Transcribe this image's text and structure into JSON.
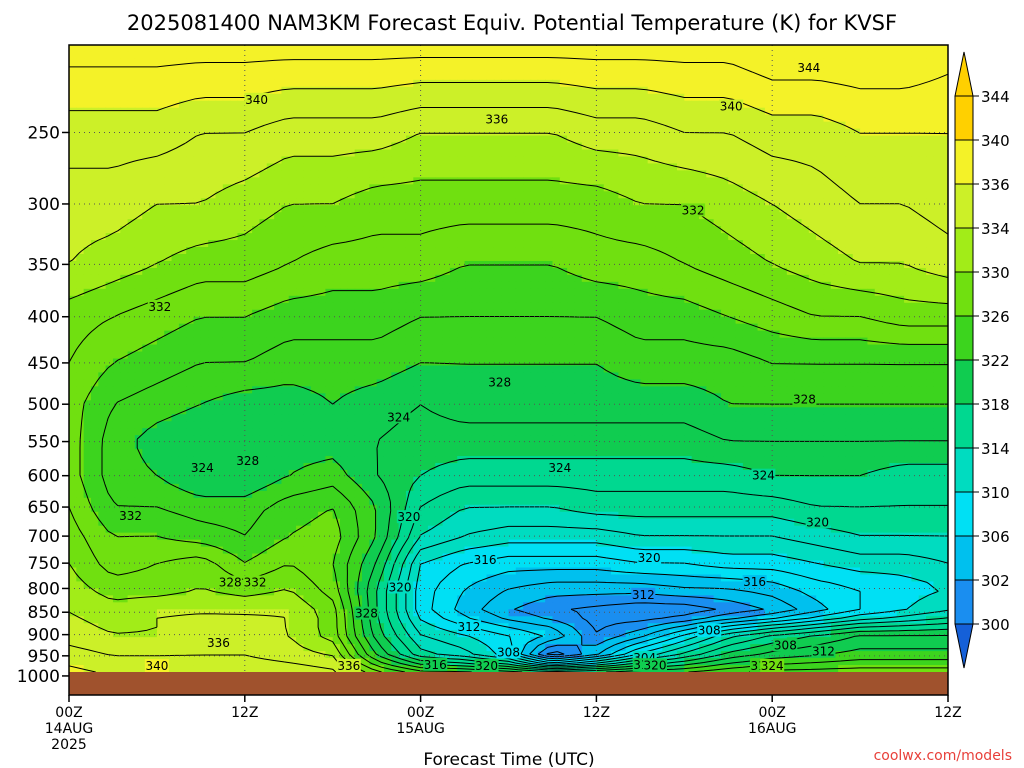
{
  "chart_data": {
    "type": "heatmap",
    "title": "2025081400 NAM3KM Forecast Equiv. Potential Temperature (K) for KVSF",
    "xlabel": "Forecast Time (UTC)",
    "ylabel": "",
    "x_ticks": [
      {
        "hour": 0,
        "lines": [
          "00Z",
          "14AUG",
          "2025"
        ]
      },
      {
        "hour": 12,
        "lines": [
          "12Z"
        ]
      },
      {
        "hour": 24,
        "lines": [
          "00Z",
          "15AUG"
        ]
      },
      {
        "hour": 36,
        "lines": [
          "12Z"
        ]
      },
      {
        "hour": 48,
        "lines": [
          "00Z",
          "16AUG"
        ]
      },
      {
        "hour": 60,
        "lines": [
          "12Z"
        ]
      }
    ],
    "xlim_hours": [
      0,
      60
    ],
    "y_ticks": [
      250,
      300,
      350,
      400,
      450,
      500,
      550,
      600,
      650,
      700,
      750,
      800,
      850,
      900,
      950,
      1000
    ],
    "ylim_hPa": [
      200,
      1013
    ],
    "y_scale": "log-pressure",
    "grid": "dotted",
    "colorbar": {
      "levels": [
        300,
        302,
        306,
        310,
        314,
        318,
        322,
        326,
        330,
        334,
        336,
        340,
        344
      ],
      "colors": [
        "#1560d8",
        "#1a8ef0",
        "#00c0ee",
        "#00e0f4",
        "#00dcc0",
        "#00d890",
        "#10cc50",
        "#3cd41e",
        "#70e010",
        "#a2ec18",
        "#ccf028",
        "#f4f228",
        "#ffd000"
      ],
      "placement": "right"
    },
    "data_grid": {
      "hours": [
        0,
        3,
        6,
        9,
        12,
        15,
        18,
        21,
        24,
        27,
        30,
        33,
        36,
        39,
        42,
        45,
        48,
        51,
        54,
        57,
        60
      ],
      "pressures_hPa": [
        200,
        250,
        300,
        350,
        400,
        450,
        500,
        550,
        600,
        650,
        700,
        750,
        800,
        850,
        900,
        950,
        1000
      ],
      "values_K": [
        [
          343,
          343,
          343,
          343,
          343,
          343,
          343,
          343,
          343,
          343,
          343,
          343,
          343,
          343,
          343,
          343,
          344,
          344,
          344,
          344,
          343
        ],
        [
          339,
          339,
          339,
          338,
          338,
          337,
          337,
          337,
          336,
          336,
          336,
          336,
          337,
          337,
          338,
          338,
          339,
          339,
          340,
          340,
          340
        ],
        [
          337,
          337,
          336,
          336,
          335,
          334,
          334,
          333,
          333,
          333,
          333,
          333,
          333,
          334,
          334,
          335,
          336,
          337,
          338,
          338,
          339
        ],
        [
          336,
          335,
          334,
          333,
          333,
          332,
          331,
          331,
          331,
          330,
          330,
          330,
          331,
          331,
          332,
          333,
          334,
          335,
          336,
          336,
          337
        ],
        [
          333,
          332,
          331,
          330,
          330,
          329,
          329,
          329,
          328,
          328,
          328,
          328,
          328,
          329,
          329,
          330,
          331,
          332,
          332,
          333,
          333
        ],
        [
          332,
          330,
          329,
          328,
          328,
          327,
          327,
          327,
          326,
          326,
          326,
          326,
          326,
          327,
          327,
          327,
          328,
          328,
          328,
          328,
          328
        ],
        [
          331,
          328,
          327,
          326,
          325,
          325,
          326,
          325,
          324,
          325,
          325,
          325,
          325,
          325,
          325,
          326,
          326,
          326,
          326,
          326,
          326
        ],
        [
          331,
          327,
          325,
          324,
          324,
          325,
          325,
          324,
          323,
          323,
          323,
          323,
          323,
          323,
          323,
          324,
          324,
          324,
          324,
          324,
          324
        ],
        [
          331,
          327,
          326,
          324,
          324,
          326,
          327,
          324,
          322,
          321,
          321,
          321,
          321,
          321,
          321,
          321,
          322,
          322,
          322,
          321,
          321
        ],
        [
          332,
          328,
          328,
          327,
          327,
          329,
          330,
          326,
          320,
          318,
          318,
          318,
          319,
          319,
          319,
          319,
          319,
          320,
          320,
          320,
          320
        ],
        [
          333,
          330,
          330,
          329,
          328,
          330,
          331,
          326,
          318,
          316,
          315,
          315,
          315,
          316,
          316,
          316,
          316,
          317,
          318,
          318,
          318
        ],
        [
          334,
          331,
          332,
          333,
          330,
          332,
          330,
          324,
          314,
          312,
          311,
          311,
          311,
          312,
          312,
          313,
          313,
          314,
          315,
          315,
          316
        ],
        [
          335,
          333,
          333,
          334,
          333,
          334,
          331,
          322,
          313,
          310,
          308,
          307,
          307,
          307,
          308,
          308,
          309,
          311,
          312,
          313,
          314
        ],
        [
          336,
          335,
          336,
          336,
          336,
          336,
          333,
          322,
          313,
          309,
          306,
          304,
          303,
          302,
          302,
          304,
          306,
          309,
          312,
          314,
          316
        ],
        [
          337,
          336,
          336,
          337,
          337,
          336,
          333,
          323,
          316,
          314,
          312,
          310,
          304,
          307,
          312,
          317,
          320,
          322,
          324,
          324,
          324
        ],
        [
          339,
          338,
          338,
          338,
          338,
          337,
          336,
          326,
          319,
          317,
          313,
          302,
          308,
          315,
          319,
          323,
          325,
          326,
          327,
          327,
          327
        ],
        [
          341,
          340,
          340,
          340,
          340,
          340,
          339,
          334,
          331,
          331,
          330,
          330,
          330,
          330,
          330,
          331,
          332,
          332,
          332,
          332,
          332
        ]
      ]
    },
    "contour_labels": [
      {
        "value": "344",
        "hour": 50.5,
        "p": 212
      },
      {
        "value": "340",
        "hour": 12.8,
        "p": 230
      },
      {
        "value": "340",
        "hour": 45.2,
        "p": 234
      },
      {
        "value": "336",
        "hour": 29.2,
        "p": 242
      },
      {
        "value": "332",
        "hour": 42.6,
        "p": 305
      },
      {
        "value": "332",
        "hour": 6.2,
        "p": 390
      },
      {
        "value": "328",
        "hour": 29.4,
        "p": 473
      },
      {
        "value": "328",
        "hour": 50.2,
        "p": 494
      },
      {
        "value": "324",
        "hour": 22.5,
        "p": 517
      },
      {
        "value": "328",
        "hour": 12.2,
        "p": 578
      },
      {
        "value": "324",
        "hour": 9.1,
        "p": 588
      },
      {
        "value": "324",
        "hour": 33.5,
        "p": 588
      },
      {
        "value": "324",
        "hour": 47.4,
        "p": 600
      },
      {
        "value": "332",
        "hour": 4.2,
        "p": 665
      },
      {
        "value": "320",
        "hour": 23.2,
        "p": 667
      },
      {
        "value": "320",
        "hour": 51.1,
        "p": 676
      },
      {
        "value": "316",
        "hour": 28.4,
        "p": 744
      },
      {
        "value": "320",
        "hour": 39.6,
        "p": 740
      },
      {
        "value": "328",
        "hour": 11.0,
        "p": 788
      },
      {
        "value": "332",
        "hour": 12.7,
        "p": 788
      },
      {
        "value": "320",
        "hour": 22.6,
        "p": 798
      },
      {
        "value": "316",
        "hour": 46.8,
        "p": 787
      },
      {
        "value": "312",
        "hour": 39.2,
        "p": 813
      },
      {
        "value": "328",
        "hour": 20.3,
        "p": 853
      },
      {
        "value": "312",
        "hour": 27.3,
        "p": 883
      },
      {
        "value": "308",
        "hour": 43.7,
        "p": 891
      },
      {
        "value": "336",
        "hour": 10.2,
        "p": 920
      },
      {
        "value": "308",
        "hour": 48.9,
        "p": 925
      },
      {
        "value": "308",
        "hour": 30.0,
        "p": 942
      },
      {
        "value": "312",
        "hour": 51.5,
        "p": 940
      },
      {
        "value": "304",
        "hour": 39.3,
        "p": 955
      },
      {
        "value": "316",
        "hour": 25.0,
        "p": 972
      },
      {
        "value": "312",
        "hour": 39.3,
        "p": 973
      },
      {
        "value": "320",
        "hour": 40.0,
        "p": 974
      },
      {
        "value": "320",
        "hour": 28.5,
        "p": 976
      },
      {
        "value": "316",
        "hour": 47.3,
        "p": 979
      },
      {
        "value": "336",
        "hour": 19.1,
        "p": 995
      },
      {
        "value": "324",
        "hour": 48.0,
        "p": 1004
      },
      {
        "value": "340",
        "hour": 6.0,
        "p": 1065
      }
    ],
    "ground_color": "#a0522d",
    "credit": "coolwx.com/models"
  }
}
